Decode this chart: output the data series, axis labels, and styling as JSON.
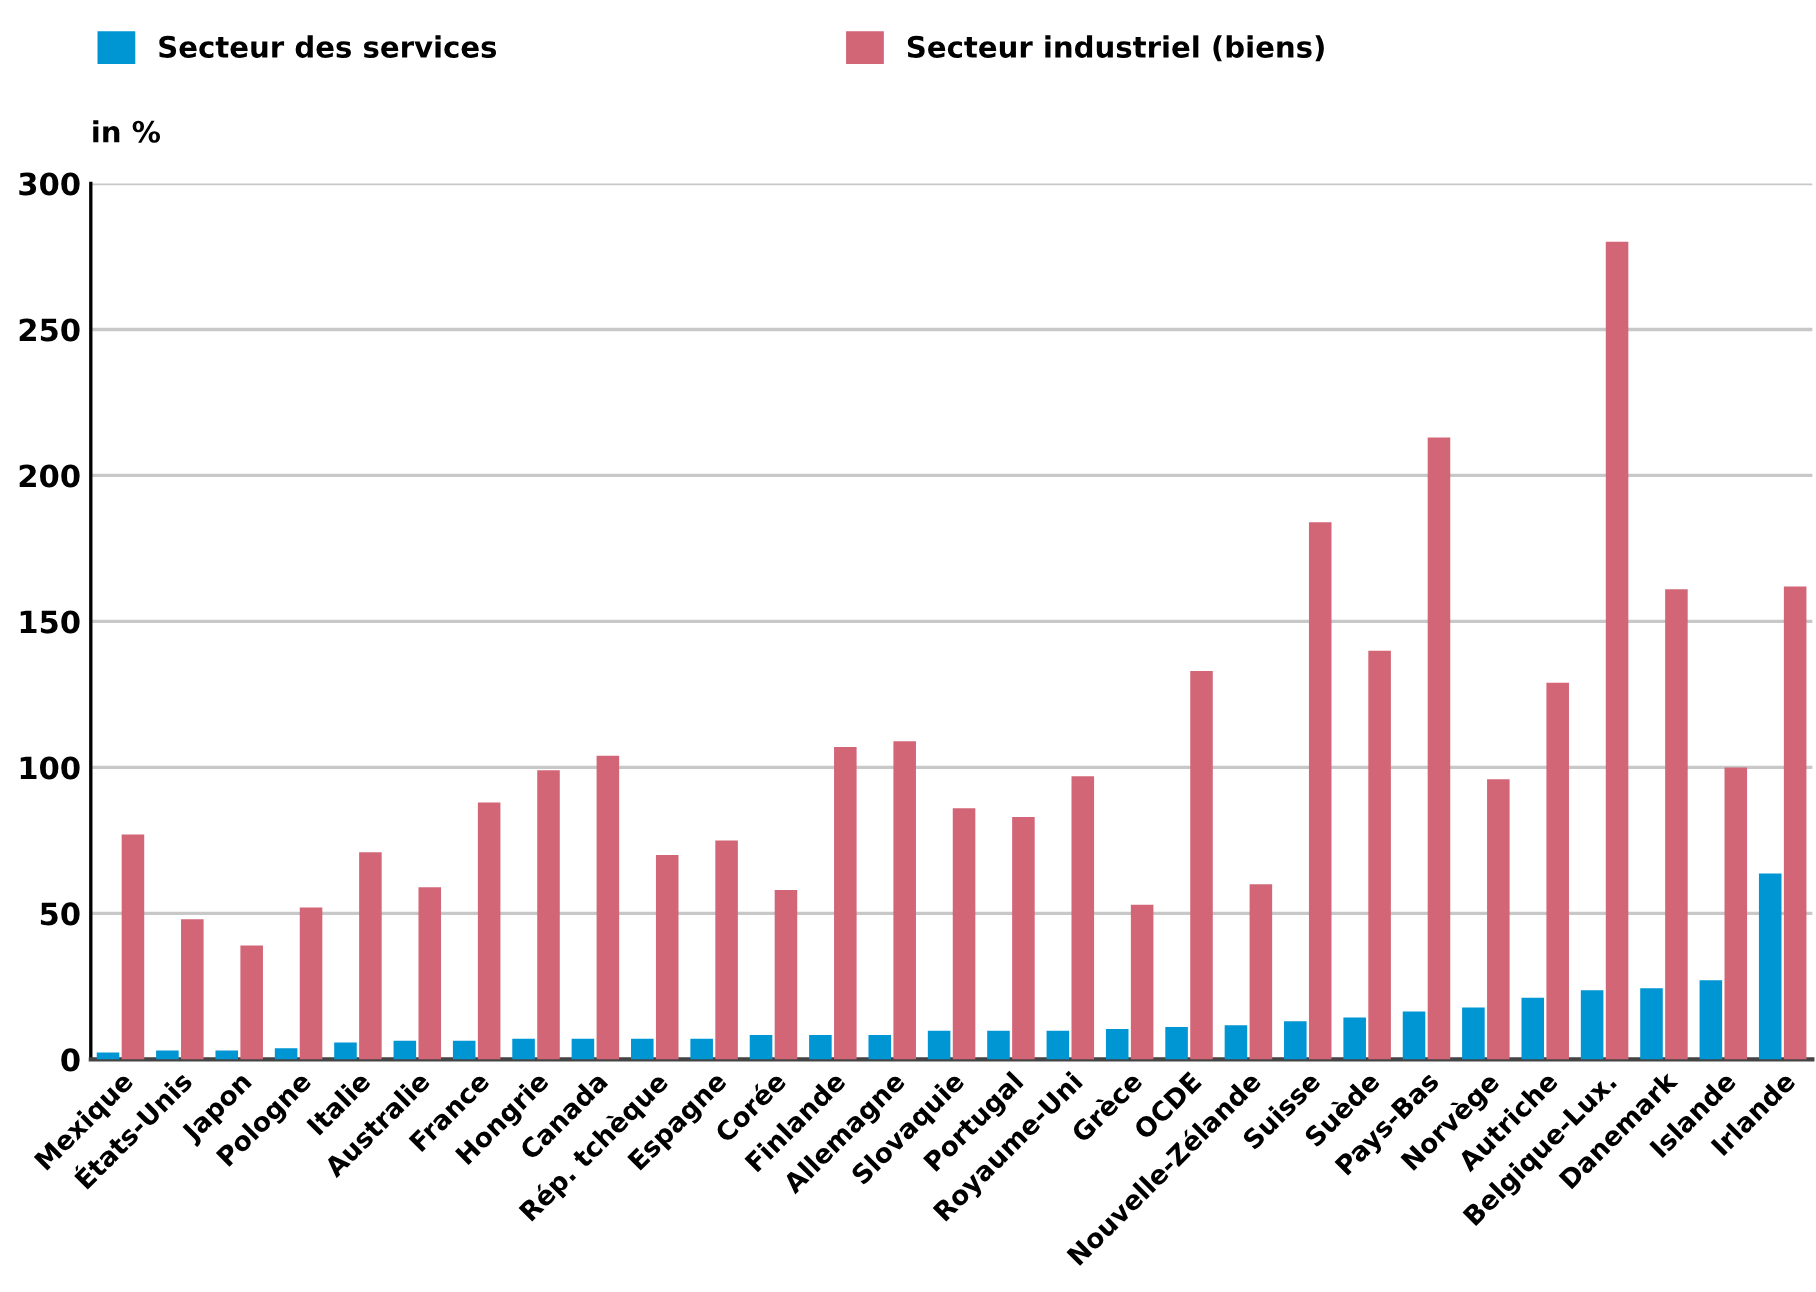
{
  "chart_data": {
    "type": "bar",
    "ylabel": "in %",
    "categories": [
      "Mexique",
      "États-Unis",
      "Japon",
      "Pologne",
      "Italie",
      "Australie",
      "France",
      "Hongrie",
      "Canada",
      "Rép. tchèque",
      "Espagne",
      "Corée",
      "Finlande",
      "Allemagne",
      "Slovaquie",
      "Portugal",
      "Royaume-Uni",
      "Grèce",
      "OCDE",
      "Nouvelle-Zélande",
      "Suisse",
      "Suède",
      "Pays-Bas",
      "Norvège",
      "Autriche",
      "Belgique-Lux.",
      "Danemark",
      "Islande",
      "Irlande"
    ],
    "series": [
      {
        "name": "Secteur des services",
        "color": "#0095d3",
        "values": [
          2.4,
          3.1,
          3.1,
          3.8,
          5.8,
          6.4,
          6.4,
          7.1,
          7.1,
          7.1,
          7.1,
          8.4,
          8.4,
          8.4,
          9.8,
          9.8,
          9.8,
          10.4,
          11.1,
          11.7,
          13.1,
          14.4,
          16.4,
          17.8,
          21.1,
          23.7,
          24.4,
          27.1,
          63.7
        ]
      },
      {
        "name": "Secteur industriel (biens)",
        "color": "#d26677",
        "values": [
          77,
          48,
          39,
          52,
          71,
          59,
          88,
          99,
          104,
          70,
          75,
          58,
          107,
          109,
          86,
          83,
          97,
          53,
          133,
          60,
          184,
          140,
          213,
          96,
          129,
          280,
          161,
          100,
          162
        ]
      }
    ],
    "ylim": [
      0,
      300
    ],
    "yticks": [
      0,
      50,
      100,
      150,
      200,
      250,
      300
    ],
    "grid": "y",
    "legend": "top"
  }
}
